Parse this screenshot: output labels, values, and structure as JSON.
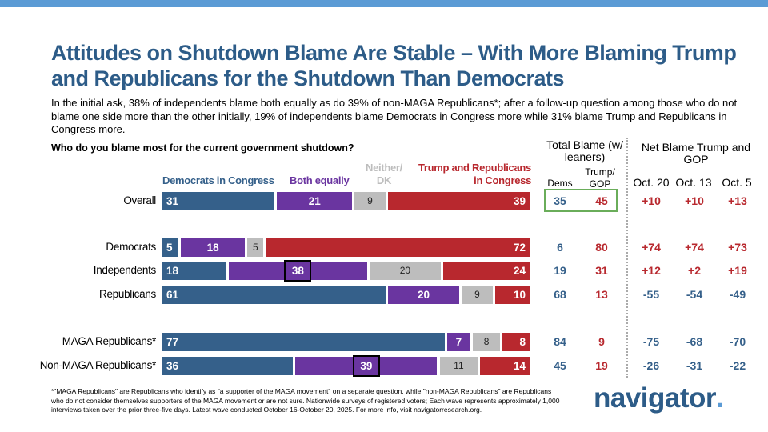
{
  "title": "Attitudes on Shutdown Blame Are Stable – With More Blaming Trump and Republicans for the Shutdown Than Democrats",
  "subtitle": "In the initial ask, 38% of independents blame both equally as do 39% of non-MAGA Republicans*; after a follow-up question among those who do not blame one side more than the other initially, 19% of independents blame Democrats in Congress more while 31% blame Trump and Republicans in Congress more.",
  "question": "Who do you blame most for the current government shutdown?",
  "chart_data": {
    "type": "bar",
    "stacked": true,
    "orientation": "horizontal",
    "categories": [
      "Overall",
      "Democrats",
      "Independents",
      "Republicans",
      "MAGA Republicans*",
      "Non-MAGA Republicans*"
    ],
    "series": [
      {
        "name": "Democrats in Congress",
        "color": "#35608a",
        "values": [
          31,
          5,
          18,
          61,
          77,
          36
        ]
      },
      {
        "name": "Both equally",
        "color": "#6a35a0",
        "values": [
          21,
          18,
          38,
          20,
          7,
          39
        ]
      },
      {
        "name": "Neither/ DK",
        "color": "#bdbdbd",
        "values": [
          9,
          5,
          20,
          9,
          8,
          11
        ]
      },
      {
        "name": "Trump and Republicans in Congress",
        "color": "#b8282e",
        "values": [
          39,
          72,
          24,
          10,
          8,
          14
        ]
      }
    ],
    "highlighted": [
      {
        "category": "Independents",
        "series": "Both equally"
      },
      {
        "category": "Non-MAGA Republicans*",
        "series": "Both equally"
      }
    ]
  },
  "total_blame": {
    "header": "Total Blame (w/ leaners)",
    "col_dems": "Dems",
    "col_gop": "Trump/ GOP",
    "dems": [
      35,
      6,
      19,
      68,
      84,
      45
    ],
    "gop": [
      45,
      80,
      31,
      13,
      9,
      19
    ]
  },
  "net_blame": {
    "header": "Net Blame Trump and GOP",
    "columns": [
      "Oct. 20",
      "Oct. 13",
      "Oct. 5"
    ],
    "rows": [
      [
        "+10",
        "+10",
        "+13"
      ],
      [
        "+74",
        "+74",
        "+73"
      ],
      [
        "+12",
        "+2",
        "+19"
      ],
      [
        "-55",
        "-54",
        "-49"
      ],
      [
        "-75",
        "-68",
        "-70"
      ],
      [
        "-26",
        "-31",
        "-22"
      ]
    ]
  },
  "colors": {
    "blue": "#35608a",
    "red": "#b8282e"
  },
  "footnote": "*\"MAGA Republicans\" are Republicans who identify as \"a supporter of the MAGA movement\" on a separate question, while \"non-MAGA Republicans\" are Republicans who do not consider themselves supporters of the MAGA movement or are not sure. Nationwide surveys of registered voters; Each wave represents approximately 1,000 interviews taken over the prior three-five days. Latest wave conducted October 16-October 20, 2025. For more info, visit navigatorresearch.org.",
  "logo": {
    "text": "navigator",
    "dot": "."
  }
}
